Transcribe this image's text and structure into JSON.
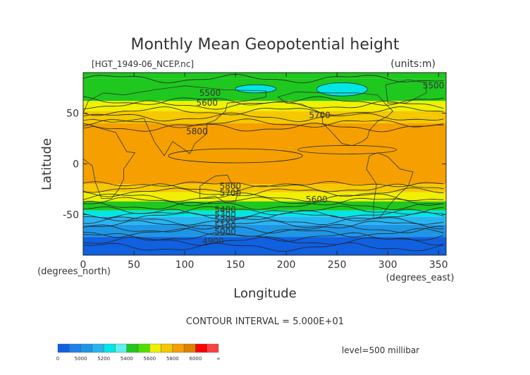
{
  "chart_data": {
    "type": "heatmap",
    "title": "Monthly Mean Geopotential height",
    "subtitle_left": "[HGT_1949-06_NCEP.nc]",
    "subtitle_right": "(units:m)",
    "xlabel": "Longitude",
    "ylabel": "Latitude",
    "x_unit": "(degrees_east)",
    "y_unit": "(degrees_north)",
    "xlim": [
      0,
      357.5
    ],
    "ylim": [
      -90,
      90
    ],
    "x_ticks": [
      0,
      50,
      100,
      150,
      200,
      250,
      300,
      350
    ],
    "y_ticks": [
      50,
      0,
      -50
    ],
    "contour_interval_text": "CONTOUR INTERVAL = 5.000E+01",
    "level_text": "level=500 millibar",
    "bands": [
      {
        "lat_min": 84,
        "lat_max": 90,
        "range": "5400-5600",
        "color": "#1ec81e"
      },
      {
        "lat_min": 62,
        "lat_max": 84,
        "range": "5400-5600",
        "color": "#1ec81e"
      },
      {
        "lat_min": 52,
        "lat_max": 62,
        "range": "5600-5700",
        "color": "#f0f000"
      },
      {
        "lat_min": 40,
        "lat_max": 52,
        "range": "5700-5800",
        "color": "#f5c800"
      },
      {
        "lat_min": -20,
        "lat_max": 40,
        "range": "5800-5900",
        "color": "#f5a000"
      },
      {
        "lat_min": -28,
        "lat_max": -20,
        "range": "5700-5800",
        "color": "#f5c800"
      },
      {
        "lat_min": -37,
        "lat_max": -28,
        "range": "5600-5700",
        "color": "#f0f000"
      },
      {
        "lat_min": -46,
        "lat_max": -37,
        "range": "5400-5600",
        "color": "#1ec81e"
      },
      {
        "lat_min": -52,
        "lat_max": -46,
        "range": "5300-5400",
        "color": "#00e6e6"
      },
      {
        "lat_min": -60,
        "lat_max": -52,
        "range": "5200-5300",
        "color": "#28b4f0"
      },
      {
        "lat_min": -72,
        "lat_max": -60,
        "range": "5000-5200",
        "color": "#1e96e6"
      },
      {
        "lat_min": -90,
        "lat_max": -72,
        "range": "4800-5000",
        "color": "#1060e0"
      }
    ],
    "highs": [
      {
        "lon_min": 150,
        "lon_max": 190,
        "lat_min": 70,
        "lat_max": 78,
        "color": "#00e6e6"
      },
      {
        "lon_min": 230,
        "lon_max": 280,
        "lat_min": 67,
        "lat_max": 80,
        "color": "#00e6e6"
      }
    ],
    "contour_labels": [
      {
        "text": "5500",
        "lon": 125,
        "lat": 70
      },
      {
        "text": "5600",
        "lon": 122,
        "lat": 60
      },
      {
        "text": "5700",
        "lon": 233,
        "lat": 48
      },
      {
        "text": "5800",
        "lon": 112,
        "lat": 32
      },
      {
        "text": "5500",
        "lon": 345,
        "lat": 77
      },
      {
        "text": "5800",
        "lon": 145,
        "lat": -22
      },
      {
        "text": "5700",
        "lon": 145,
        "lat": -29
      },
      {
        "text": "5600",
        "lon": 230,
        "lat": -35
      },
      {
        "text": "5400",
        "lon": 140,
        "lat": -45
      },
      {
        "text": "5300",
        "lon": 140,
        "lat": -50
      },
      {
        "text": "5200",
        "lon": 140,
        "lat": -55
      },
      {
        "text": "5100",
        "lon": 140,
        "lat": -61
      },
      {
        "text": "5000",
        "lon": 140,
        "lat": -67
      },
      {
        "text": "4900",
        "lon": 128,
        "lat": -76
      }
    ],
    "colorbar": {
      "ticks": [
        "0",
        "5000",
        "5200",
        "5400",
        "5600",
        "5800",
        "6000",
        "∞"
      ],
      "colors": [
        "#1060e0",
        "#1e80e8",
        "#1e96e6",
        "#28b4f0",
        "#00e6e6",
        "#60f0f0",
        "#1ec81e",
        "#50e000",
        "#f0f000",
        "#f5c800",
        "#f5a000",
        "#e08000",
        "#ff0000",
        "#ff4040"
      ]
    }
  }
}
